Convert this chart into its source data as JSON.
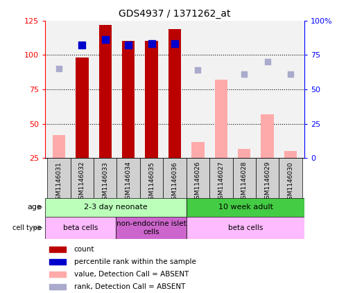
{
  "title": "GDS4937 / 1371262_at",
  "samples": [
    "GSM1146031",
    "GSM1146032",
    "GSM1146033",
    "GSM1146034",
    "GSM1146035",
    "GSM1146036",
    "GSM1146026",
    "GSM1146027",
    "GSM1146028",
    "GSM1146029",
    "GSM1146030"
  ],
  "count_values": [
    null,
    98,
    122,
    110,
    110,
    119,
    null,
    null,
    null,
    null,
    null
  ],
  "count_absent_values": [
    42,
    null,
    null,
    null,
    null,
    null,
    37,
    82,
    32,
    57,
    30
  ],
  "rank_pct_values": [
    null,
    82,
    86,
    82,
    83,
    83,
    null,
    null,
    null,
    null,
    null
  ],
  "rank_pct_absent": [
    65,
    null,
    null,
    null,
    null,
    null,
    64,
    null,
    61,
    70,
    61
  ],
  "ylim_left": [
    25,
    125
  ],
  "ylim_right": [
    0,
    100
  ],
  "left_ticks": [
    25,
    50,
    75,
    100,
    125
  ],
  "right_ticks": [
    0,
    25,
    50,
    75,
    100
  ],
  "right_tick_labels": [
    "0",
    "25",
    "50",
    "75",
    "100%"
  ],
  "bar_width": 0.55,
  "red_color": "#bb0000",
  "pink_color": "#ffaaaa",
  "blue_color": "#0000cc",
  "lightblue_color": "#aaaacc",
  "age_groups": [
    {
      "label": "2-3 day neonate",
      "start": 0,
      "end": 6,
      "color": "#bbffbb"
    },
    {
      "label": "10 week adult",
      "start": 6,
      "end": 11,
      "color": "#44cc44"
    }
  ],
  "cell_type_groups": [
    {
      "label": "beta cells",
      "start": 0,
      "end": 3,
      "color": "#ffbbff"
    },
    {
      "label": "non-endocrine islet\ncells",
      "start": 3,
      "end": 6,
      "color": "#cc66cc"
    },
    {
      "label": "beta cells",
      "start": 6,
      "end": 11,
      "color": "#ffbbff"
    }
  ],
  "legend_items": [
    {
      "color": "#bb0000",
      "label": "count"
    },
    {
      "color": "#0000cc",
      "label": "percentile rank within the sample"
    },
    {
      "color": "#ffaaaa",
      "label": "value, Detection Call = ABSENT"
    },
    {
      "color": "#aaaacc",
      "label": "rank, Detection Call = ABSENT"
    }
  ]
}
